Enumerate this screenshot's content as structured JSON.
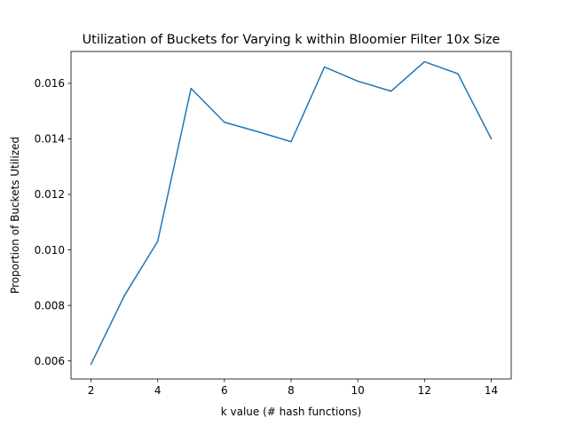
{
  "chart_data": {
    "type": "line",
    "title": "Utilization of Buckets for Varying k within Bloomier Filter 10x Size",
    "xlabel": "k value (# hash functions)",
    "ylabel": "Proportion of Buckets Utilized",
    "xlim": [
      1.4,
      14.6
    ],
    "ylim": [
      0.00535,
      0.01715
    ],
    "xticks": [
      2,
      4,
      6,
      8,
      10,
      12,
      14
    ],
    "xtick_labels": [
      "2",
      "4",
      "6",
      "8",
      "10",
      "12",
      "14"
    ],
    "yticks": [
      0.006,
      0.008,
      0.01,
      0.012,
      0.014,
      0.016
    ],
    "ytick_labels": [
      "0.006",
      "0.008",
      "0.010",
      "0.012",
      "0.014",
      "0.016"
    ],
    "grid": false,
    "legend": false,
    "line_color": "#1f77b4",
    "series": [
      {
        "x": [
          2,
          3,
          4,
          5,
          6,
          7,
          8,
          9,
          10,
          11,
          12,
          13,
          14
        ],
        "y": [
          0.00588,
          0.00835,
          0.01031,
          0.01582,
          0.0146,
          0.01426,
          0.0139,
          0.01659,
          0.01608,
          0.01572,
          0.01678,
          0.01635,
          0.01401
        ]
      }
    ]
  }
}
